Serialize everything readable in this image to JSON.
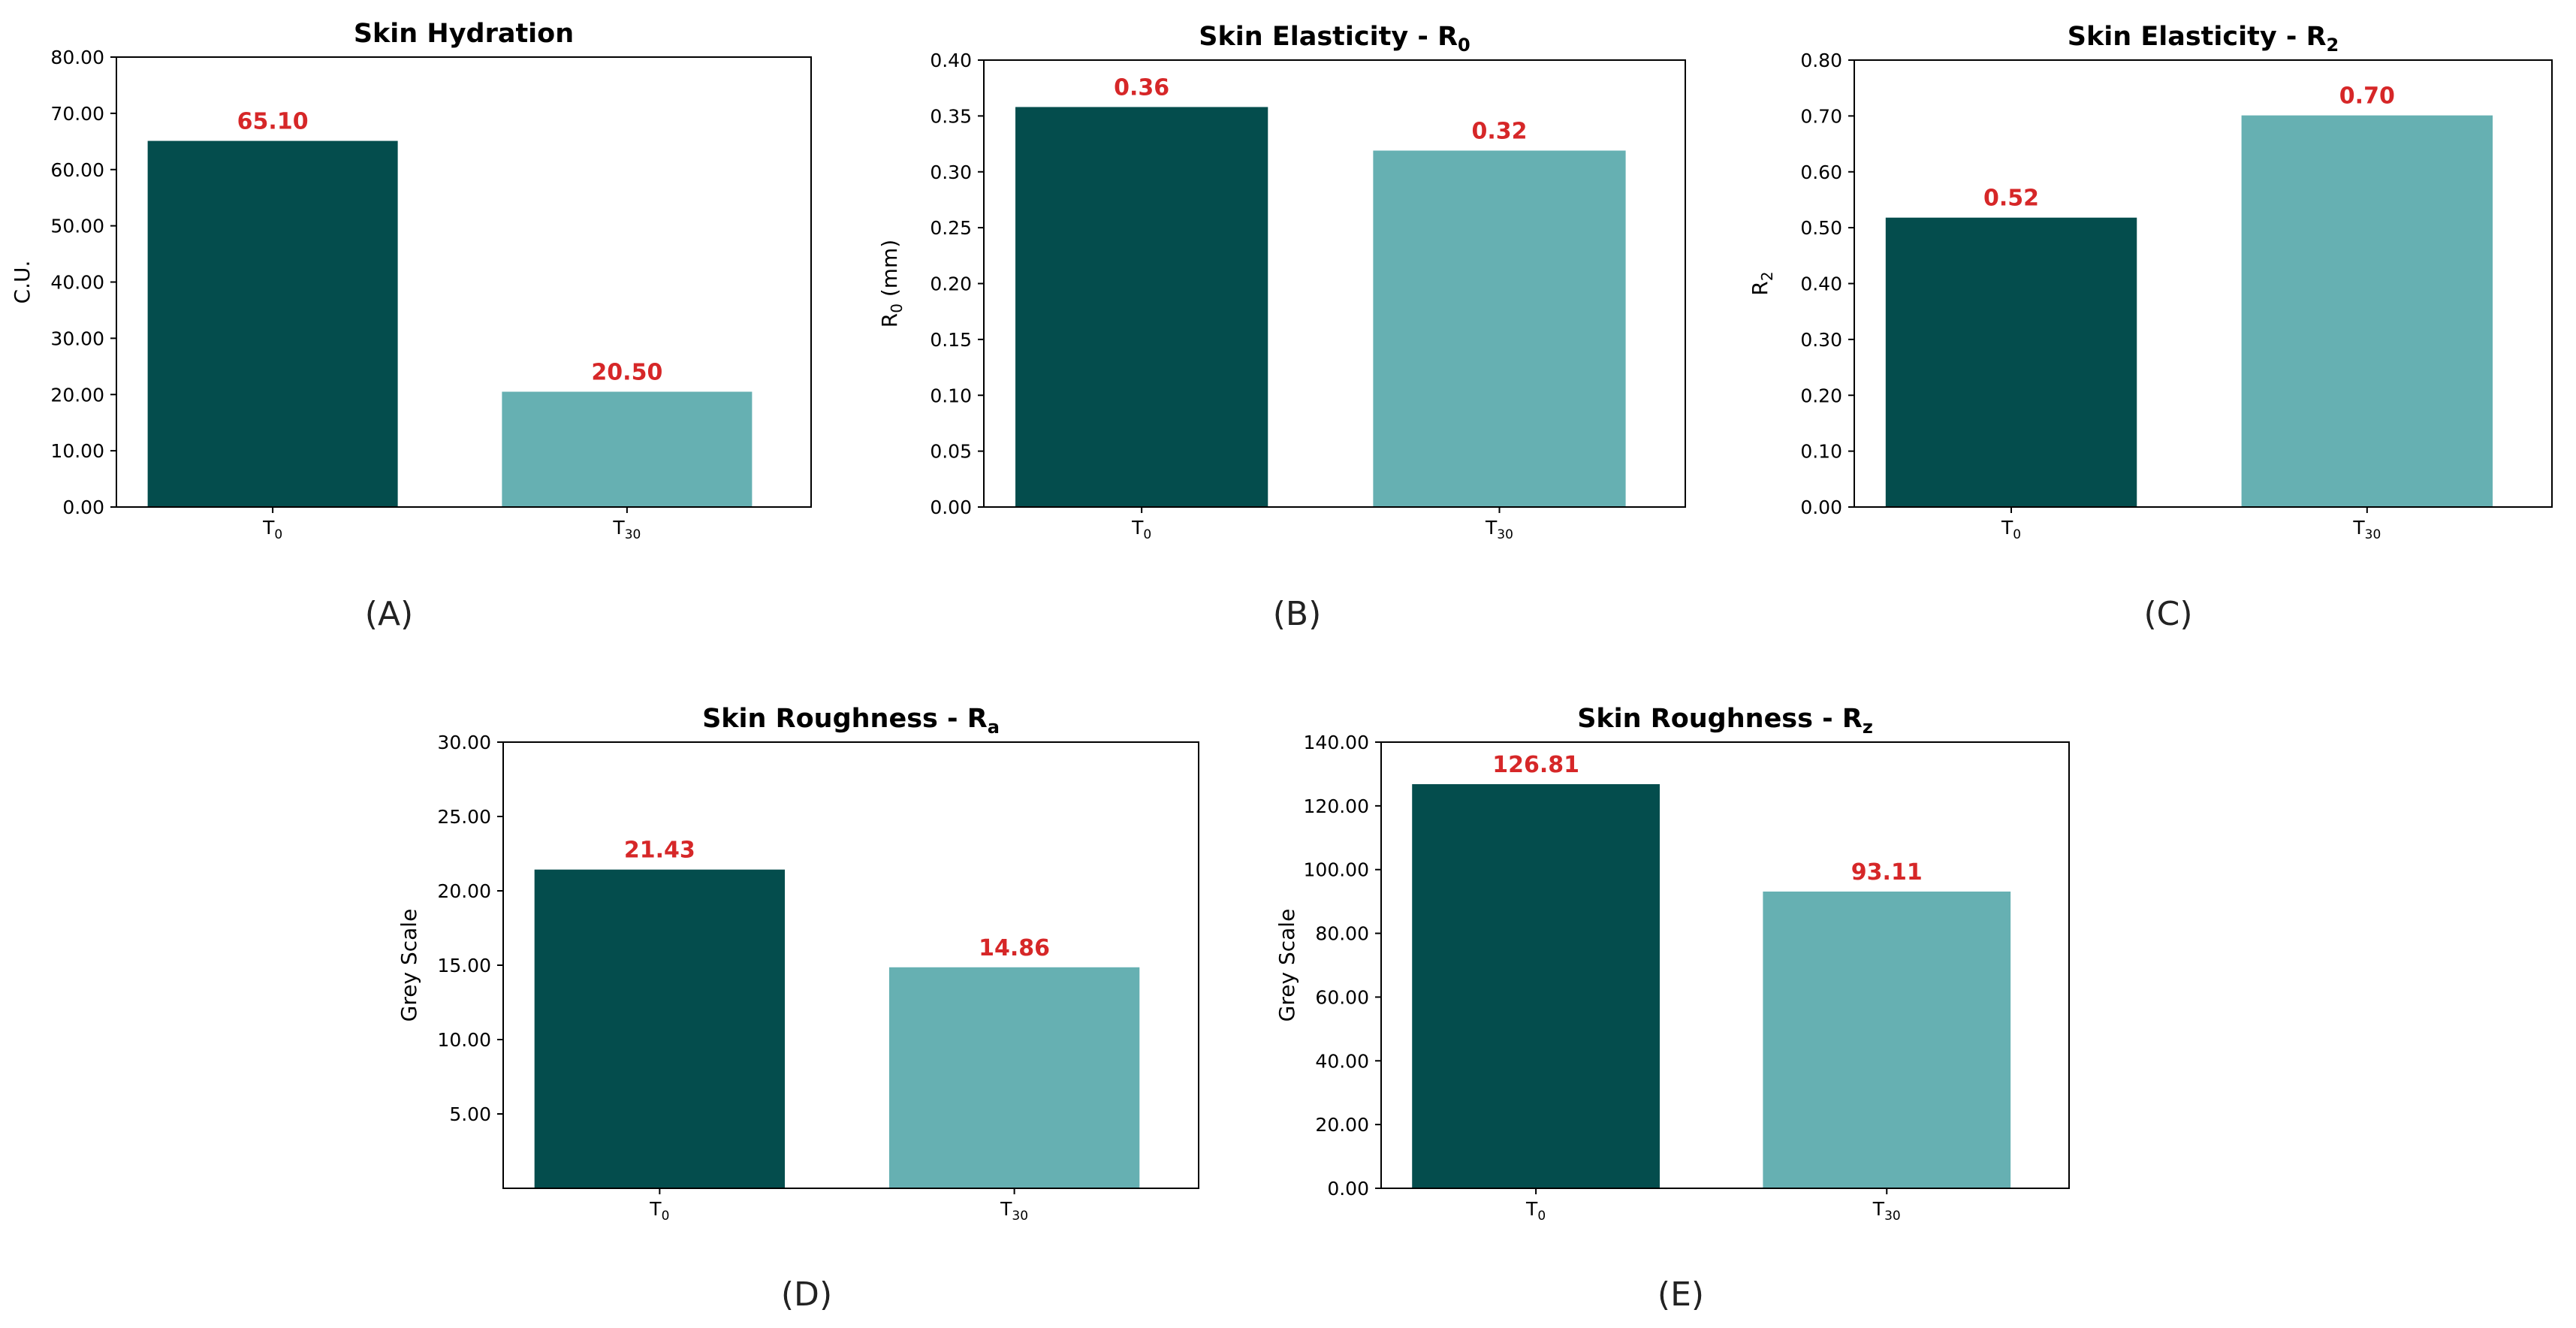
{
  "colors": {
    "dark_bar": "#044d4d",
    "light_bar": "#66b0b2",
    "value_label": "#d62728",
    "axis": "#000000"
  },
  "chart_data": [
    {
      "type": "bar",
      "panel": "(A)",
      "title": "Skin Hydration",
      "ylabel": "C.U.",
      "categories": [
        {
          "base": "T",
          "sub": "0"
        },
        {
          "base": "T",
          "sub": "30"
        }
      ],
      "values": [
        65.1,
        20.5
      ],
      "value_labels": [
        "65.10",
        "20.50"
      ],
      "ylim": [
        0,
        80
      ],
      "yticks": [
        0,
        10,
        20,
        30,
        40,
        50,
        60,
        70,
        80
      ],
      "ytick_labels": [
        "0.00",
        "10.00",
        "20.00",
        "30.00",
        "40.00",
        "50.00",
        "60.00",
        "70.00",
        "80.00"
      ]
    },
    {
      "type": "bar",
      "panel": "(B)",
      "title": "Skin Elasticity - R",
      "title_sub": "0",
      "ylabel": "R",
      "ylabel_sub": "0",
      "ylabel_suffix": " (mm)",
      "categories": [
        {
          "base": "T",
          "sub": "0"
        },
        {
          "base": "T",
          "sub": "30"
        }
      ],
      "values": [
        0.358,
        0.319
      ],
      "value_labels": [
        "0.36",
        "0.32"
      ],
      "ylim": [
        0,
        0.4
      ],
      "yticks": [
        0,
        0.05,
        0.1,
        0.15,
        0.2,
        0.25,
        0.3,
        0.35,
        0.4
      ],
      "ytick_labels": [
        "0.00",
        "0.05",
        "0.10",
        "0.15",
        "0.20",
        "0.25",
        "0.30",
        "0.35",
        "0.40"
      ]
    },
    {
      "type": "bar",
      "panel": "(C)",
      "title": "Skin Elasticity - R",
      "title_sub": "2",
      "ylabel": "R",
      "ylabel_sub": "2",
      "categories": [
        {
          "base": "T",
          "sub": "0"
        },
        {
          "base": "T",
          "sub": "30"
        }
      ],
      "values": [
        0.518,
        0.701
      ],
      "value_labels": [
        "0.52",
        "0.70"
      ],
      "ylim": [
        0,
        0.8
      ],
      "yticks": [
        0,
        0.1,
        0.2,
        0.3,
        0.4,
        0.5,
        0.6,
        0.7,
        0.8
      ],
      "ytick_labels": [
        "0.00",
        "0.10",
        "0.20",
        "0.30",
        "0.40",
        "0.50",
        "0.60",
        "0.70",
        "0.80"
      ]
    },
    {
      "type": "bar",
      "panel": "(D)",
      "title": "Skin Roughness - R",
      "title_sub": "a",
      "ylabel": "Grey Scale",
      "categories": [
        {
          "base": "T",
          "sub": "0"
        },
        {
          "base": "T",
          "sub": "30"
        }
      ],
      "values": [
        21.43,
        14.86
      ],
      "value_labels": [
        "21.43",
        "14.86"
      ],
      "ylim": [
        0,
        30
      ],
      "yticks": [
        5,
        10,
        15,
        20,
        25,
        30
      ],
      "ytick_labels": [
        "5.00",
        "10.00",
        "15.00",
        "20.00",
        "25.00",
        "30.00"
      ]
    },
    {
      "type": "bar",
      "panel": "(E)",
      "title": "Skin Roughness - R",
      "title_sub": "z",
      "ylabel": "Grey Scale",
      "categories": [
        {
          "base": "T",
          "sub": "0"
        },
        {
          "base": "T",
          "sub": "30"
        }
      ],
      "values": [
        126.81,
        93.11
      ],
      "value_labels": [
        "126.81",
        "93.11"
      ],
      "ylim": [
        0,
        140
      ],
      "yticks": [
        0,
        20,
        40,
        60,
        80,
        100,
        120,
        140
      ],
      "ytick_labels": [
        "0.00",
        "20.00",
        "40.00",
        "60.00",
        "80.00",
        "100.00",
        "120.00",
        "140.00"
      ]
    }
  ]
}
